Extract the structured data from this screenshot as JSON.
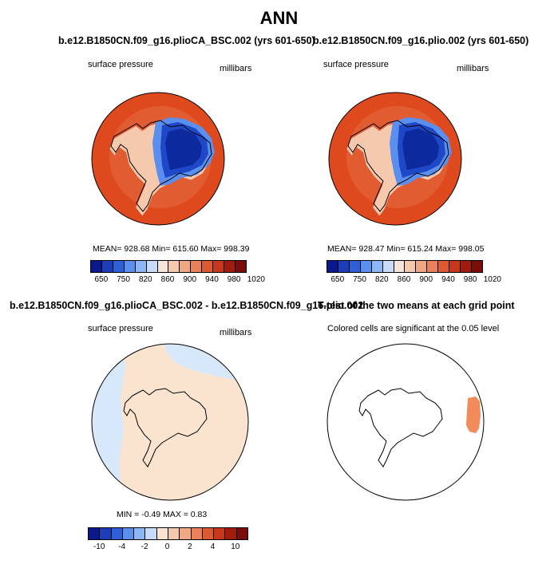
{
  "title": "ANN",
  "panels": [
    {
      "title": "b.e12.B1850CN.f09_g16.plioCA_BSC.002 (yrs 601-650)",
      "left_label": "surface pressure",
      "right_label": "millibars",
      "stats": "MEAN=  928.68    Min=  615.60    Max=  998.39",
      "legend": {
        "ticks": [
          "650",
          "750",
          "820",
          "860",
          "900",
          "940",
          "980",
          "1020"
        ],
        "colors": [
          "#0a1a8c",
          "#1c3cb8",
          "#2f5fd8",
          "#5a8fee",
          "#8cb6f6",
          "#c8dcfa",
          "#f6e6da",
          "#f5c9ad",
          "#f0a882",
          "#e9825a",
          "#dd5a30",
          "#c8371a",
          "#a21c0e",
          "#7a0d08"
        ]
      }
    },
    {
      "title": "b.e12.B1850CN.f09_g16.plio.002 (yrs 601-650)",
      "left_label": "surface pressure",
      "right_label": "millibars",
      "stats": "MEAN=  928.47    Min=  615.24    Max=  998.05",
      "legend": {
        "ticks": [
          "650",
          "750",
          "820",
          "860",
          "900",
          "940",
          "980",
          "1020"
        ],
        "colors": [
          "#0a1a8c",
          "#1c3cb8",
          "#2f5fd8",
          "#5a8fee",
          "#8cb6f6",
          "#c8dcfa",
          "#f6e6da",
          "#f5c9ad",
          "#f0a882",
          "#e9825a",
          "#dd5a30",
          "#c8371a",
          "#a21c0e",
          "#7a0d08"
        ]
      }
    },
    {
      "title": "b.e12.B1850CN.f09_g16.plioCA_BSC.002 - b.e12.B1850CN.f09_g16.plio.002",
      "left_label": "surface pressure",
      "right_label": "millibars",
      "stats": "MIN =   -0.49  MAX =    0.83",
      "legend": {
        "ticks": [
          "-10",
          "-4",
          "-2",
          "0",
          "2",
          "4",
          "10"
        ],
        "colors": [
          "#0a1a8c",
          "#1c3cb8",
          "#2f5fd8",
          "#5a8fee",
          "#8cb6f6",
          "#c8dcfa",
          "#fbe4cf",
          "#f5c9ad",
          "#f0a882",
          "#e9825a",
          "#dd5a30",
          "#c8371a",
          "#a21c0e",
          "#7a0d08"
        ]
      }
    },
    {
      "title": "T-test of the two means at each grid point",
      "subtitle": "Colored cells are significant at the 0.05 level"
    }
  ],
  "colors": {
    "ocean_mean": "#de4a1e",
    "inner_ring": "#e25c32",
    "ice_interior": "#0c2a9e",
    "ice_mid": "#1f48c8",
    "ice_edge": "#5a8fee",
    "coast_fringe": "#f5c9ad",
    "diff_positive": "#fbe4cf",
    "diff_negative": "#d8e8fb",
    "ttest_signif": "#f28a5a"
  }
}
